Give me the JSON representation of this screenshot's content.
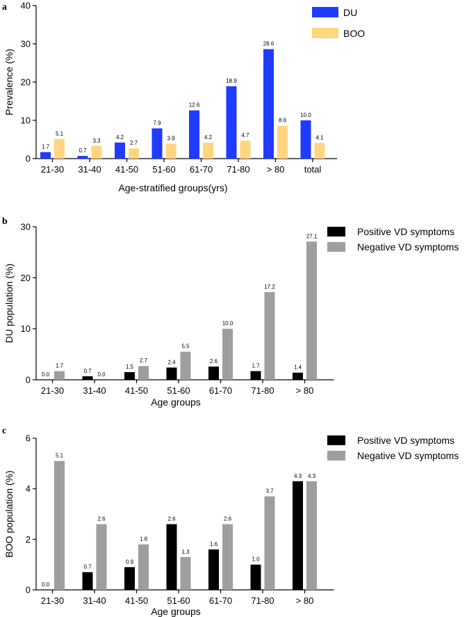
{
  "chart_data": [
    {
      "panel": "a",
      "type": "bar",
      "title": "",
      "xlabel": "Age-stratified groups(yrs)",
      "ylabel": "Prevalence (%)",
      "ylim": [
        0,
        40
      ],
      "yticks": [
        "0",
        "10",
        "20",
        "30",
        "40"
      ],
      "categories": [
        "21-30",
        "31-40",
        "41-50",
        "51-60",
        "61-70",
        "71-80",
        "> 80",
        "total"
      ],
      "series": [
        {
          "name": "DU",
          "color": "#1f3bff",
          "values": [
            1.7,
            0.7,
            4.2,
            7.9,
            12.6,
            18.9,
            28.6,
            10.0
          ],
          "labels": [
            "1.7",
            "0.7",
            "4.2",
            "7.9",
            "12.6",
            "18.9",
            "28.6",
            "10.0"
          ]
        },
        {
          "name": "BOO",
          "color": "#ffd580",
          "values": [
            5.1,
            3.3,
            2.7,
            3.9,
            4.2,
            4.7,
            8.6,
            4.1
          ],
          "labels": [
            "5.1",
            "3.3",
            "2.7",
            "3.9",
            "4.2",
            "4.7",
            "8.6",
            "4.1"
          ]
        }
      ],
      "legend": "top-right"
    },
    {
      "panel": "b",
      "type": "bar",
      "title": "",
      "xlabel": "Age groups",
      "ylabel": "DU population (%)",
      "ylim": [
        0,
        30
      ],
      "yticks": [
        "0",
        "10",
        "20",
        "30"
      ],
      "categories": [
        "21-30",
        "31-40",
        "41-50",
        "51-60",
        "61-70",
        "71-80",
        "> 80"
      ],
      "series": [
        {
          "name": "Positive VD symptoms",
          "color": "#000000",
          "values": [
            0.0,
            0.7,
            1.5,
            2.4,
            2.6,
            1.7,
            1.4
          ],
          "labels": [
            "0.0",
            "0.7",
            "1.5",
            "2.4",
            "2.6",
            "1.7",
            "1.4"
          ]
        },
        {
          "name": "Negative VD symptoms",
          "color": "#9e9e9e",
          "values": [
            1.7,
            0.0,
            2.7,
            5.5,
            10.0,
            17.2,
            27.1
          ],
          "labels": [
            "1.7",
            "0.0",
            "2.7",
            "5.5",
            "10.0",
            "17.2",
            "27.1"
          ]
        }
      ],
      "legend": "top-right"
    },
    {
      "panel": "c",
      "type": "bar",
      "title": "",
      "xlabel": "Age groups",
      "ylabel": "BOO population (%)",
      "ylim": [
        0,
        6
      ],
      "yticks": [
        "0",
        "2",
        "4",
        "6"
      ],
      "categories": [
        "21-30",
        "31-40",
        "41-50",
        "51-60",
        "61-70",
        "71-80",
        "> 80"
      ],
      "series": [
        {
          "name": "Positive VD symptoms",
          "color": "#000000",
          "values": [
            0.0,
            0.7,
            0.9,
            2.6,
            1.6,
            1.0,
            4.3
          ],
          "labels": [
            "0.0",
            "0.7",
            "0.9",
            "2.6",
            "1.6",
            "1.0",
            "4.3"
          ]
        },
        {
          "name": "Negative VD symptoms",
          "color": "#9e9e9e",
          "values": [
            5.1,
            2.6,
            1.8,
            1.3,
            2.6,
            3.7,
            4.3
          ],
          "labels": [
            "5.1",
            "2.6",
            "1.8",
            "1.3",
            "2.6",
            "3.7",
            "4.3"
          ]
        }
      ],
      "legend": "top-right"
    }
  ]
}
